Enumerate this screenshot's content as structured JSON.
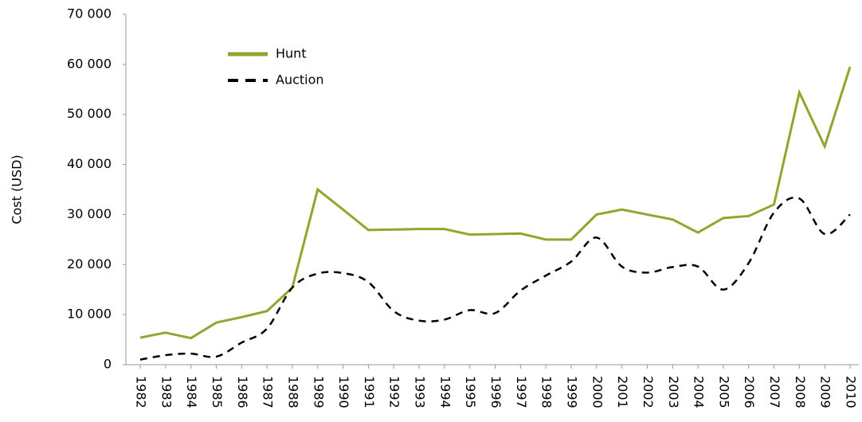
{
  "chart_data": {
    "type": "line",
    "y_label": "Cost (USD)",
    "categories": [
      "1982",
      "1983",
      "1984",
      "1985",
      "1986",
      "1987",
      "1988",
      "1989",
      "1990",
      "1991",
      "1992",
      "1993",
      "1994",
      "1995",
      "1996",
      "1997",
      "1998",
      "1999",
      "2000",
      "2001",
      "2002",
      "2003",
      "2004",
      "2005",
      "2006",
      "2007",
      "2008",
      "2009",
      "2010"
    ],
    "series": [
      {
        "name": "Hunt",
        "color": "#8ea82e",
        "dash": "solid",
        "smooth": false,
        "values": [
          5400,
          6400,
          5300,
          8400,
          9500,
          10700,
          15400,
          35000,
          31000,
          26900,
          27000,
          27100,
          27100,
          26000,
          26100,
          26200,
          25000,
          25000,
          30000,
          31000,
          30000,
          29000,
          26400,
          29300,
          29700,
          32000,
          54400,
          43600,
          59500
        ]
      },
      {
        "name": "Auction",
        "color": "#000000",
        "dash": "dashed",
        "smooth": true,
        "values": [
          1000,
          1900,
          2200,
          1600,
          4400,
          7200,
          15400,
          18200,
          18300,
          16500,
          10700,
          8800,
          9000,
          10900,
          10300,
          14800,
          17800,
          20600,
          25400,
          19600,
          18400,
          19500,
          19600,
          15000,
          20300,
          30400,
          33200,
          26100,
          30000
        ]
      }
    ],
    "ylim": [
      0,
      70000
    ],
    "yticks": [
      0,
      {
        "value": 10000,
        "label": "10 000"
      },
      {
        "value": 20000,
        "label": "20 000"
      },
      {
        "value": 30000,
        "label": "30 000"
      },
      {
        "value": 40000,
        "label": "40 000"
      },
      {
        "value": 50000,
        "label": "50 000"
      },
      {
        "value": 60000,
        "label": "60 000"
      },
      {
        "value": 70000,
        "label": "70 000"
      }
    ],
    "legend": "top-left"
  }
}
